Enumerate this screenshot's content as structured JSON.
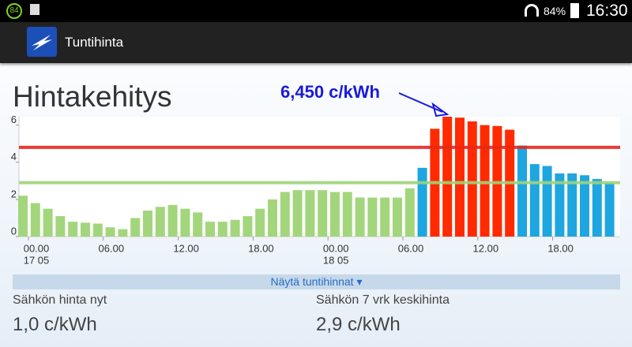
{
  "status_bar": {
    "badge": "84",
    "battery": "84%",
    "time": "16:30"
  },
  "app_bar": {
    "title": "Tuntihinta"
  },
  "page_title": "Hintakehitys",
  "chart_data": {
    "type": "bar",
    "annotation": "6,450 c/kWh",
    "categories": [
      "00.00",
      null,
      null,
      null,
      null,
      null,
      "06.00",
      null,
      null,
      null,
      null,
      null,
      "12.00",
      null,
      null,
      null,
      null,
      null,
      "18.00",
      null,
      null,
      null,
      null,
      null,
      "00.00",
      null,
      null,
      null,
      null,
      null,
      "06.00",
      null,
      null,
      null,
      null,
      null,
      "12.00",
      null,
      null,
      null,
      null,
      null,
      "18.00",
      null,
      null,
      null,
      null,
      null
    ],
    "date_labels": [
      "17 05",
      null,
      null,
      null,
      null,
      null,
      null,
      null,
      null,
      null,
      null,
      null,
      null,
      null,
      null,
      null,
      null,
      null,
      null,
      null,
      null,
      null,
      null,
      null,
      "18 05",
      null,
      null,
      null,
      null,
      null,
      null,
      null,
      null,
      null,
      null,
      null,
      null,
      null,
      null,
      null,
      null,
      null,
      null,
      null,
      null,
      null,
      null,
      null
    ],
    "values": [
      2.2,
      1.8,
      1.5,
      1.1,
      0.8,
      0.75,
      0.7,
      0.5,
      0.4,
      1.0,
      1.4,
      1.6,
      1.7,
      1.5,
      1.3,
      0.8,
      0.8,
      0.9,
      1.1,
      1.5,
      2.0,
      2.4,
      2.5,
      2.5,
      2.5,
      2.4,
      2.4,
      2.1,
      2.1,
      2.1,
      2.1,
      2.6,
      3.7,
      5.8,
      6.45,
      6.4,
      6.2,
      6.0,
      5.95,
      5.75,
      4.9,
      3.9,
      3.8,
      3.4,
      3.4,
      3.3,
      3.1,
      2.9
    ],
    "colors": [
      "#a3d67c",
      "#a3d67c",
      "#a3d67c",
      "#a3d67c",
      "#a3d67c",
      "#a3d67c",
      "#a3d67c",
      "#a3d67c",
      "#a3d67c",
      "#a3d67c",
      "#a3d67c",
      "#a3d67c",
      "#a3d67c",
      "#a3d67c",
      "#a3d67c",
      "#a3d67c",
      "#a3d67c",
      "#a3d67c",
      "#a3d67c",
      "#a3d67c",
      "#a3d67c",
      "#a3d67c",
      "#a3d67c",
      "#a3d67c",
      "#a3d67c",
      "#a3d67c",
      "#a3d67c",
      "#a3d67c",
      "#a3d67c",
      "#a3d67c",
      "#a3d67c",
      "#a3d67c",
      "#1ea6e0",
      "#ff2a00",
      "#ff2a00",
      "#ff2a00",
      "#ff2a00",
      "#ff2a00",
      "#ff2a00",
      "#ff2a00",
      "#1ea6e0",
      "#1ea6e0",
      "#1ea6e0",
      "#1ea6e0",
      "#1ea6e0",
      "#1ea6e0",
      "#1ea6e0",
      "#1ea6e0"
    ],
    "reference_lines": [
      {
        "value": 4.8,
        "color": "#e8261c"
      },
      {
        "value": 2.9,
        "color": "#9fd47a"
      }
    ],
    "ylim": [
      0,
      6.45
    ],
    "yticks": [
      0,
      2,
      4,
      6
    ]
  },
  "toggle": "Näytä tuntihinnat ▾",
  "stats": [
    {
      "label": "Sähkön hinta nyt",
      "value": "1,0 c/kWh"
    },
    {
      "label": "Sähkön 7 vrk keskihinta",
      "value": "2,9 c/kWh"
    }
  ]
}
